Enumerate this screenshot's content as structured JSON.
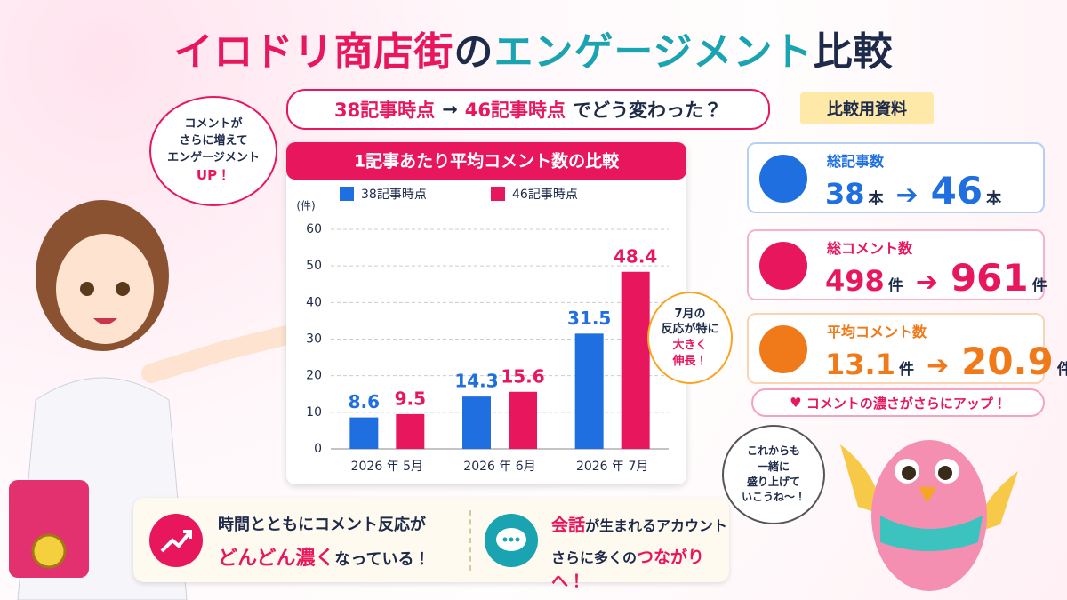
{
  "header": {
    "title_parts": [
      "イロドリ商店街",
      "の",
      "エンゲージメント",
      "比較"
    ],
    "subtitle_parts": [
      "38記事時点",
      "→",
      "46記事時点",
      "でどう変わった？"
    ],
    "tag": "比較用資料"
  },
  "left_bubble": {
    "lines": [
      "コメントが",
      "さらに増えて",
      "エンゲージメント",
      "UP！"
    ]
  },
  "chart_data": {
    "type": "bar",
    "title": "1記事あたり平均コメント数の比較",
    "y_label": "(件)",
    "categories": [
      "2026 年 5月",
      "2026 年 6月",
      "2026 年 7月"
    ],
    "series": [
      {
        "name": "38記事時点",
        "color": "#1f6fe0",
        "values": [
          8.6,
          14.3,
          31.5
        ]
      },
      {
        "name": "46記事時点",
        "color": "#e8175d",
        "values": [
          9.5,
          15.6,
          48.4
        ]
      }
    ],
    "ylim": [
      0,
      60
    ],
    "yticks": [
      0,
      10,
      20,
      30,
      40,
      50,
      60
    ],
    "grid": true,
    "annotation": [
      "7月の",
      "反応が特に",
      "大きく",
      "伸長！"
    ]
  },
  "stats": [
    {
      "label": "総記事数",
      "from": 38,
      "to": 46,
      "unit": "本",
      "color": "#1f6fe0"
    },
    {
      "label": "総コメント数",
      "from": 498,
      "to": 961,
      "unit": "件",
      "color": "#e8175d"
    },
    {
      "label": "平均コメント数",
      "from": 13.1,
      "to": 20.9,
      "unit": "件",
      "color": "#f07a1a"
    }
  ],
  "stats_note": "コメントの濃さがさらにアップ！",
  "bottom": {
    "left": {
      "line1": "時間とともにコメント反応が",
      "line2_parts": [
        "どんどん濃く",
        "なっている！"
      ]
    },
    "right": {
      "line1_parts": [
        "会話",
        "が生まれるアカウント"
      ],
      "line2_parts": [
        "さらに多くの",
        "つながりへ！"
      ]
    }
  },
  "bird_bubble": {
    "lines": [
      "これからも",
      "一緒に",
      "盛り上げて",
      "いこうね〜！"
    ]
  }
}
